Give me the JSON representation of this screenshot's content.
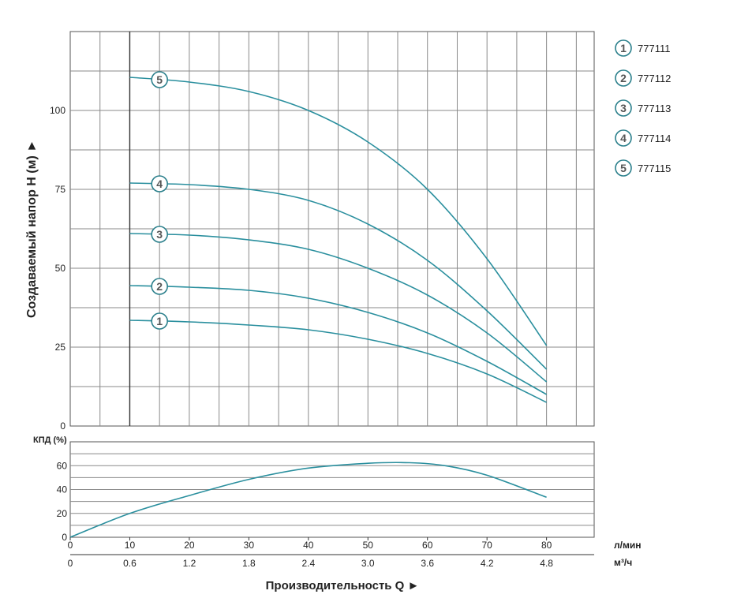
{
  "chart_data": [
    {
      "type": "line",
      "ylabel": "Создаваемый напор Н (м) ►",
      "y_ticks": [
        0,
        25,
        50,
        75,
        100
      ],
      "ylim": [
        0,
        125
      ],
      "x_lpm": [
        0,
        10,
        20,
        30,
        40,
        50,
        60,
        70,
        80
      ],
      "xlim_lpm": [
        0,
        88
      ],
      "grid": true,
      "legend_position": "right",
      "series": [
        {
          "name": "777111",
          "marker": "1",
          "x_lpm": [
            10,
            20,
            30,
            40,
            50,
            60,
            70,
            80
          ],
          "values": [
            33.5,
            33,
            32,
            30.5,
            27.5,
            23,
            16.5,
            7.5
          ]
        },
        {
          "name": "777112",
          "marker": "2",
          "x_lpm": [
            10,
            20,
            30,
            40,
            50,
            60,
            70,
            80
          ],
          "values": [
            44.5,
            44,
            43,
            40.5,
            36,
            29.5,
            20.5,
            10
          ]
        },
        {
          "name": "777113",
          "marker": "3",
          "x_lpm": [
            10,
            20,
            30,
            40,
            50,
            60,
            70,
            80
          ],
          "values": [
            61,
            60.5,
            59,
            56,
            50,
            41.5,
            29.5,
            14
          ]
        },
        {
          "name": "777114",
          "marker": "4",
          "x_lpm": [
            10,
            20,
            30,
            40,
            50,
            60,
            70,
            80
          ],
          "values": [
            77,
            76.5,
            75,
            71.5,
            64,
            52.5,
            36.5,
            18
          ]
        },
        {
          "name": "777115",
          "marker": "5",
          "x_lpm": [
            10,
            20,
            30,
            40,
            50,
            60,
            70,
            80
          ],
          "values": [
            110.5,
            109,
            106,
            100,
            90,
            75,
            53,
            25.5
          ]
        }
      ]
    },
    {
      "type": "line",
      "ylabel": "КПД (%)",
      "y_ticks": [
        0,
        20,
        40,
        60
      ],
      "ylim": [
        0,
        80
      ],
      "xlim_lpm": [
        0,
        88
      ],
      "grid": true,
      "series": [
        {
          "x_lpm": [
            0,
            10,
            20,
            30,
            40,
            50,
            57,
            63,
            70,
            80
          ],
          "values": [
            0,
            20,
            35,
            48.5,
            58,
            62,
            62.5,
            60,
            52,
            33.5
          ]
        }
      ]
    }
  ],
  "x_axis": {
    "lpm_ticks": [
      "0",
      "10",
      "20",
      "30",
      "40",
      "50",
      "60",
      "70",
      "80"
    ],
    "m3h_ticks": [
      "0",
      "0.6",
      "1.2",
      "1.8",
      "2.4",
      "3.0",
      "3.6",
      "4.2",
      "4.8"
    ],
    "lpm_unit": "л/мин",
    "m3h_unit": "м³/ч",
    "title": "Производительность Q ►"
  },
  "colors": {
    "curve": "#2a8f9e",
    "grid": "#8a8a8a",
    "marker_stroke": "#2a7f8b",
    "text": "#222222"
  }
}
